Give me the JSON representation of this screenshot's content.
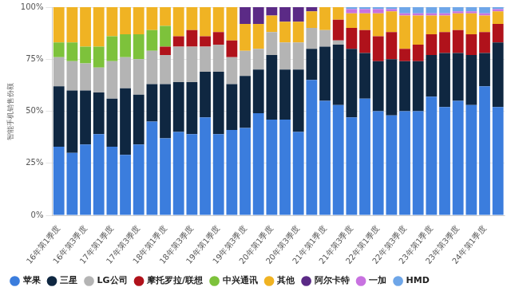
{
  "chart_data": {
    "type": "bar",
    "stacked": true,
    "grid": true,
    "legend": "bottom",
    "y_label": "智能手机销售份额",
    "categories": [
      "16年第1季度",
      null,
      "16年第3季度",
      null,
      "17年第1季度",
      null,
      "17年第3季度",
      null,
      "18年第1季度",
      null,
      "18年第3季度",
      null,
      "19年第1季度",
      null,
      "19年第3季度",
      null,
      "20年第1季度",
      null,
      "20年第3季度",
      null,
      "21年第1季度",
      null,
      "21年第3季度",
      null,
      "22年第1季度",
      null,
      "22年第3季度",
      null,
      "23年第1季度",
      null,
      "23年第3季度",
      null,
      "24年第1季度",
      null
    ],
    "ylim": [
      0,
      100
    ],
    "yticks": [
      {
        "value": 0,
        "label": "0%"
      },
      {
        "value": 25,
        "label": "25%"
      },
      {
        "value": 50,
        "label": "50%"
      },
      {
        "value": 75,
        "label": "75%"
      },
      {
        "value": 100,
        "label": "100%"
      }
    ],
    "series": [
      {
        "name": "苹果",
        "color": "#3b7ddd",
        "values": [
          33,
          30,
          34,
          39,
          33,
          29,
          34,
          45,
          37,
          40,
          39,
          47,
          39,
          41,
          42,
          49,
          46,
          46,
          40,
          65,
          55,
          53,
          47,
          56,
          50,
          48,
          50,
          50,
          57,
          52,
          55,
          53,
          62,
          52
        ]
      },
      {
        "name": "三星",
        "color": "#0f2741",
        "values": [
          29,
          30,
          26,
          20,
          23,
          32,
          24,
          18,
          26,
          24,
          25,
          22,
          30,
          22,
          25,
          21,
          31,
          24,
          30,
          15,
          26,
          29,
          33,
          22,
          24,
          27,
          24,
          24,
          20,
          26,
          23,
          24,
          16,
          31
        ]
      },
      {
        "name": "LG公司",
        "color": "#b4b4b4",
        "values": [
          14,
          14,
          13,
          12,
          18,
          15,
          17,
          16,
          14,
          17,
          17,
          12,
          13,
          13,
          12,
          10,
          11,
          13,
          13,
          10,
          8,
          2,
          0,
          0,
          0,
          0,
          0,
          0,
          0,
          0,
          0,
          0,
          0,
          0
        ]
      },
      {
        "name": "摩托罗拉/联想",
        "color": "#b0121b",
        "values": [
          0,
          0,
          0,
          0,
          0,
          0,
          0,
          0,
          4,
          5,
          8,
          5,
          6,
          8,
          0,
          0,
          0,
          0,
          0,
          0,
          0,
          10,
          10,
          11,
          12,
          13,
          6,
          8,
          10,
          10,
          11,
          10,
          10,
          9
        ]
      },
      {
        "name": "中兴通讯",
        "color": "#7dc23b",
        "values": [
          7,
          9,
          8,
          10,
          12,
          11,
          12,
          10,
          10,
          0,
          0,
          0,
          0,
          0,
          0,
          0,
          0,
          0,
          0,
          0,
          0,
          0,
          0,
          0,
          0,
          0,
          0,
          0,
          0,
          0,
          0,
          0,
          0,
          0
        ]
      },
      {
        "name": "其他",
        "color": "#f0b323",
        "values": [
          17,
          17,
          19,
          19,
          14,
          13,
          13,
          11,
          9,
          14,
          11,
          14,
          12,
          16,
          13,
          12,
          8,
          10,
          10,
          8,
          11,
          6,
          7,
          8,
          11,
          10,
          16,
          14,
          9,
          8,
          8,
          10,
          8,
          6
        ]
      },
      {
        "name": "阿尔卡特",
        "color": "#5b2a86",
        "values": [
          0,
          0,
          0,
          0,
          0,
          0,
          0,
          0,
          0,
          0,
          0,
          0,
          0,
          0,
          8,
          8,
          4,
          7,
          7,
          2,
          0,
          0,
          0,
          0,
          0,
          0,
          0,
          0,
          0,
          0,
          0,
          0,
          0,
          0
        ]
      },
      {
        "name": "一加",
        "color": "#c872e0",
        "values": [
          0,
          0,
          0,
          0,
          0,
          0,
          0,
          0,
          0,
          0,
          0,
          0,
          0,
          0,
          0,
          0,
          0,
          0,
          0,
          0,
          0,
          0,
          2,
          2,
          2,
          1,
          1,
          1,
          1,
          1,
          1,
          1,
          1,
          1
        ]
      },
      {
        "name": "HMD",
        "color": "#6ea6e8",
        "values": [
          0,
          0,
          0,
          0,
          0,
          0,
          0,
          0,
          0,
          0,
          0,
          0,
          0,
          0,
          0,
          0,
          0,
          0,
          0,
          0,
          0,
          0,
          1,
          1,
          1,
          1,
          3,
          3,
          3,
          3,
          2,
          2,
          3,
          1
        ]
      }
    ]
  }
}
